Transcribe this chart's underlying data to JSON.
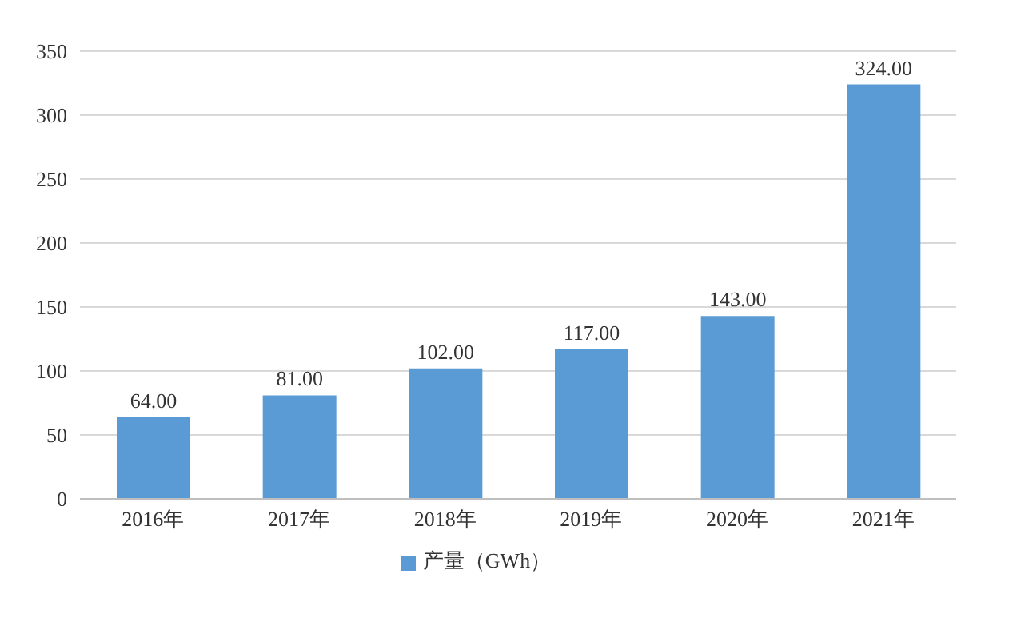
{
  "chart_data": {
    "type": "bar",
    "categories": [
      "2016年",
      "2017年",
      "2018年",
      "2019年",
      "2020年",
      "2021年"
    ],
    "series": [
      {
        "name": "产量（GWh）",
        "color": "#5b9bd5",
        "values": [
          64,
          81,
          102,
          117,
          143,
          324
        ],
        "value_labels": [
          "64.00",
          "81.00",
          "102.00",
          "117.00",
          "143.00",
          "324.00"
        ]
      }
    ],
    "ylim": [
      0,
      350
    ],
    "yticks": [
      0,
      50,
      100,
      150,
      200,
      250,
      300,
      350
    ],
    "grid": "y",
    "legend": "bottom"
  }
}
